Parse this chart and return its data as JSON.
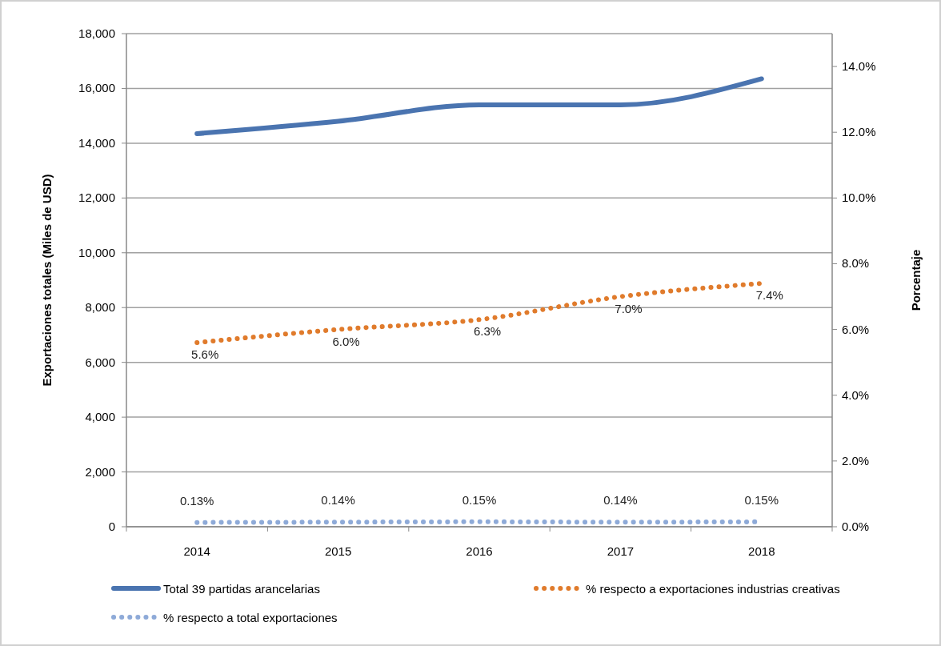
{
  "chart_data": {
    "type": "line",
    "categories": [
      "2014",
      "2015",
      "2016",
      "2017",
      "2018"
    ],
    "ylabel": "Exportaciones totales (Miles de USD)",
    "y2label": "Porcentaje",
    "ylim": [
      0,
      18000
    ],
    "yticks": [
      {
        "value": 0,
        "label": "0"
      },
      {
        "value": 2000,
        "label": "2,000"
      },
      {
        "value": 4000,
        "label": "4,000"
      },
      {
        "value": 6000,
        "label": "6,000"
      },
      {
        "value": 8000,
        "label": "8,000"
      },
      {
        "value": 10000,
        "label": "10,000"
      },
      {
        "value": 12000,
        "label": "12,000"
      },
      {
        "value": 14000,
        "label": "14,000"
      },
      {
        "value": 16000,
        "label": "16,000"
      },
      {
        "value": 18000,
        "label": "18,000"
      }
    ],
    "y2lim": [
      0,
      15
    ],
    "y2ticks": [
      {
        "value": 0,
        "label": "0.0%"
      },
      {
        "value": 2,
        "label": "2.0%"
      },
      {
        "value": 4,
        "label": "4.0%"
      },
      {
        "value": 6,
        "label": "6.0%"
      },
      {
        "value": 8,
        "label": "8.0%"
      },
      {
        "value": 10,
        "label": "10.0%"
      },
      {
        "value": 12,
        "label": "12.0%"
      },
      {
        "value": 14,
        "label": "14.0%"
      }
    ],
    "grid": "y",
    "legend": "bottom",
    "series": [
      {
        "name": "Total 39 partidas arancelarias",
        "color": "#4a74b0",
        "line_style": "solid",
        "values": [
          14350,
          14800,
          15400,
          15400,
          16350
        ]
      },
      {
        "name": "% respecto a exportaciones industrias creativas",
        "color": "#e07b2c",
        "line_style": "dotted",
        "axis": "y2",
        "values": [
          5.6,
          6.0,
          6.3,
          7.0,
          7.4
        ],
        "value_labels": [
          "5.6%",
          "6.0%",
          "6.3%",
          "7.0%",
          "7.4%"
        ]
      },
      {
        "name": "% respecto a total exportaciones",
        "color": "#8eaad8",
        "line_style": "dotted",
        "axis": "y2",
        "values": [
          0.13,
          0.14,
          0.15,
          0.14,
          0.15
        ],
        "value_labels": [
          "0.13%",
          "0.14%",
          "0.15%",
          "0.14%",
          "0.15%"
        ]
      }
    ]
  }
}
